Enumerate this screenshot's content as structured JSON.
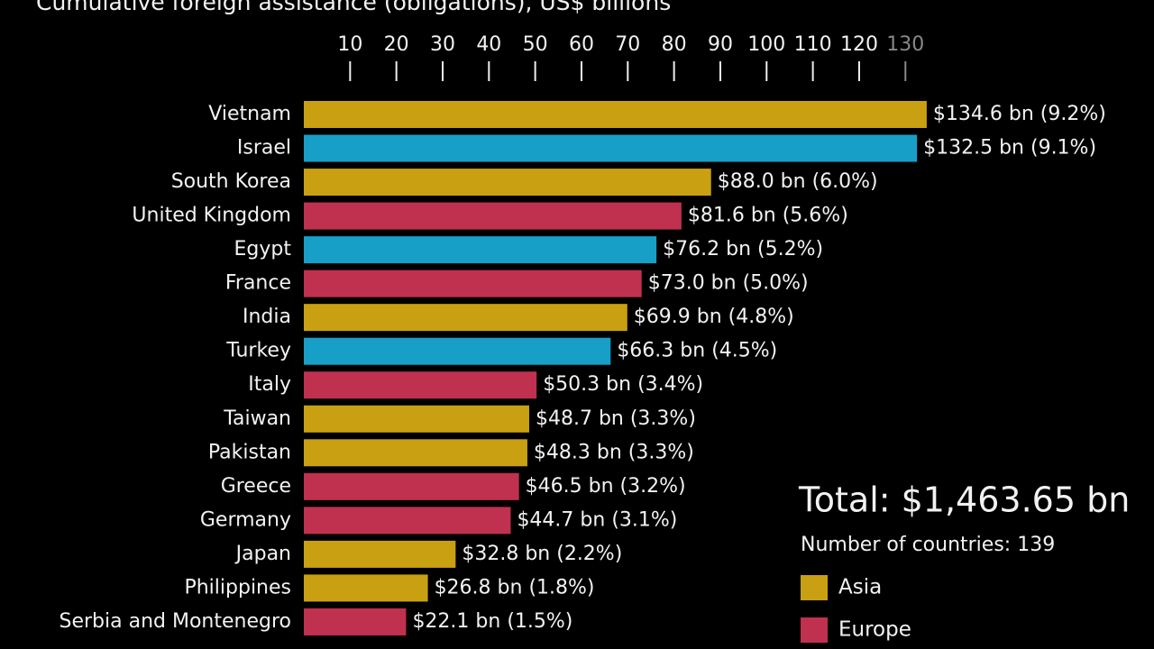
{
  "chart_data": {
    "type": "bar",
    "orientation": "horizontal",
    "title": "Cumulative foreign assistance (obligations), US$ billions",
    "categories": [
      "Vietnam",
      "Israel",
      "South Korea",
      "United Kingdom",
      "Egypt",
      "France",
      "India",
      "Turkey",
      "Italy",
      "Taiwan",
      "Pakistan",
      "Greece",
      "Germany",
      "Japan",
      "Philippines",
      "Serbia and Montenegro"
    ],
    "values": [
      134.6,
      132.5,
      88.0,
      81.6,
      76.2,
      73.0,
      69.9,
      66.3,
      50.3,
      48.7,
      48.3,
      46.5,
      44.7,
      32.8,
      26.8,
      22.1
    ],
    "value_labels": [
      "$134.6 bn (9.2%)",
      "$132.5 bn (9.1%)",
      "$88.0 bn (6.0%)",
      "$81.6 bn (5.6%)",
      "$76.2 bn (5.2%)",
      "$73.0 bn (5.0%)",
      "$69.9 bn (4.8%)",
      "$66.3 bn (4.5%)",
      "$50.3 bn (3.4%)",
      "$48.7 bn (3.3%)",
      "$48.3 bn (3.3%)",
      "$46.5 bn (3.2%)",
      "$44.7 bn (3.1%)",
      "$32.8 bn (2.2%)",
      "$26.8 bn (1.8%)",
      "$22.1 bn (1.5%)"
    ],
    "colors": [
      "#c9a011",
      "#179fc8",
      "#c9a011",
      "#c0314f",
      "#179fc8",
      "#c0314f",
      "#c9a011",
      "#179fc8",
      "#c0314f",
      "#c9a011",
      "#c9a011",
      "#c0314f",
      "#c0314f",
      "#c9a011",
      "#c9a011",
      "#c0314f"
    ],
    "xlim": [
      0,
      140
    ],
    "xticks": [
      10,
      20,
      30,
      40,
      50,
      60,
      70,
      80,
      90,
      100,
      110,
      120,
      130
    ],
    "total": "Total: $1,463.65 bn",
    "countries_note": "Number of countries: 139",
    "legend": [
      {
        "name": "Asia",
        "color": "#c9a011"
      },
      {
        "name": "Europe",
        "color": "#c0314f"
      }
    ]
  }
}
